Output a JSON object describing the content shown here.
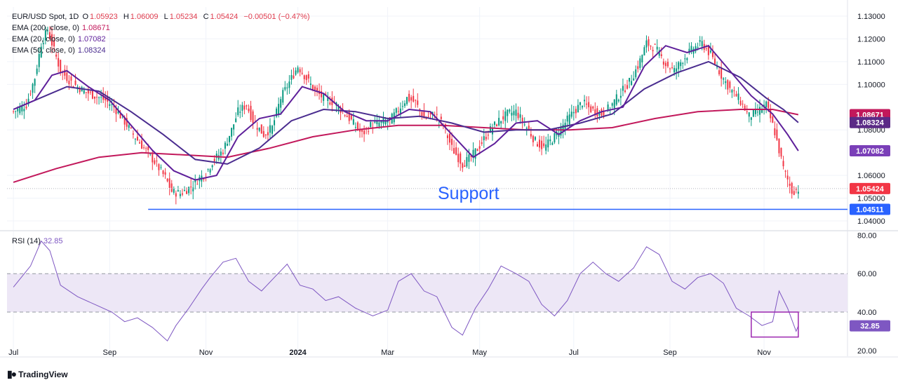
{
  "header": {
    "symbol": "EUR/USD Spot, 1D",
    "ohlc": [
      {
        "label": "O",
        "value": "1.05923"
      },
      {
        "label": "H",
        "value": "1.06009"
      },
      {
        "label": "L",
        "value": "1.05234"
      },
      {
        "label": "C",
        "value": "1.05424"
      }
    ],
    "change": "−0.00501 (−0.47%)"
  },
  "indicators": [
    {
      "label": "EMA (200, close, 0)",
      "value": "1.08671",
      "color": "#c2185b"
    },
    {
      "label": "EMA (20, close, 0)",
      "value": "1.07082",
      "color": "#5e1f9a"
    },
    {
      "label": "EMA (50, close, 0)",
      "value": "1.08324",
      "color": "#4a2c8f"
    }
  ],
  "rsi": {
    "label": "RSI (14)",
    "value": "32.85",
    "color": "#7e57c2"
  },
  "annotation": {
    "text": "Support",
    "level": 1.04511,
    "color": "#2962ff"
  },
  "price_tags": [
    {
      "value": "1.08671",
      "bg": "#c2185b"
    },
    {
      "value": "1.08324",
      "bg": "#5b2a86"
    },
    {
      "value": "1.07082",
      "bg": "#7a3fb8"
    },
    {
      "value": "1.05424",
      "bg": "#f23645"
    },
    {
      "value": "1.04511",
      "bg": "#2962ff"
    }
  ],
  "footer": {
    "brand": "TradingView",
    "logo": "tradingview-logo"
  },
  "colors": {
    "up": "#089981",
    "down": "#f23645",
    "grid": "#f0f3fa",
    "rsi_band": "#ede7f6"
  },
  "chart_data": [
    {
      "type": "candlestick",
      "title": "EUR/USD Spot, 1D",
      "ylim": [
        1.036,
        1.134
      ],
      "y_ticks": [
        1.04,
        1.05,
        1.06,
        1.08,
        1.1,
        1.11,
        1.12,
        1.13
      ],
      "y_tick_labels": [
        "1.04000",
        "1.05000",
        "1.06000",
        "1.08000",
        "1.10000",
        "1.11000",
        "1.12000",
        "1.13000"
      ],
      "x_tick_labels": [
        "Jul",
        "Sep",
        "Nov",
        "2024",
        "Mar",
        "May",
        "Jul",
        "Sep",
        "Nov"
      ],
      "x_tick_index": [
        0,
        45,
        90,
        133,
        175,
        218,
        262,
        307,
        351
      ],
      "x_range": [
        -3,
        390
      ],
      "close_path": [
        [
          0,
          1.088
        ],
        [
          6,
          1.091
        ],
        [
          10,
          1.103
        ],
        [
          13,
          1.118
        ],
        [
          16,
          1.124
        ],
        [
          19,
          1.115
        ],
        [
          22,
          1.106
        ],
        [
          27,
          1.101
        ],
        [
          33,
          1.097
        ],
        [
          38,
          1.095
        ],
        [
          43,
          1.093
        ],
        [
          47,
          1.09
        ],
        [
          51,
          1.085
        ],
        [
          56,
          1.078
        ],
        [
          61,
          1.072
        ],
        [
          66,
          1.066
        ],
        [
          71,
          1.059
        ],
        [
          74,
          1.053
        ],
        [
          78,
          1.052
        ],
        [
          83,
          1.055
        ],
        [
          86,
          1.058
        ],
        [
          90,
          1.061
        ],
        [
          93,
          1.066
        ],
        [
          98,
          1.071
        ],
        [
          102,
          1.08
        ],
        [
          105,
          1.088
        ],
        [
          109,
          1.091
        ],
        [
          112,
          1.084
        ],
        [
          117,
          1.078
        ],
        [
          121,
          1.081
        ],
        [
          125,
          1.094
        ],
        [
          129,
          1.101
        ],
        [
          133,
          1.108
        ],
        [
          136,
          1.104
        ],
        [
          141,
          1.097
        ],
        [
          145,
          1.094
        ],
        [
          150,
          1.092
        ],
        [
          154,
          1.088
        ],
        [
          158,
          1.084
        ],
        [
          163,
          1.078
        ],
        [
          167,
          1.082
        ],
        [
          171,
          1.083
        ],
        [
          176,
          1.084
        ],
        [
          180,
          1.089
        ],
        [
          184,
          1.094
        ],
        [
          188,
          1.092
        ],
        [
          192,
          1.085
        ],
        [
          197,
          1.087
        ],
        [
          201,
          1.082
        ],
        [
          205,
          1.072
        ],
        [
          210,
          1.065
        ],
        [
          214,
          1.068
        ],
        [
          218,
          1.073
        ],
        [
          222,
          1.079
        ],
        [
          227,
          1.084
        ],
        [
          231,
          1.087
        ],
        [
          235,
          1.088
        ],
        [
          240,
          1.081
        ],
        [
          244,
          1.075
        ],
        [
          248,
          1.072
        ],
        [
          253,
          1.077
        ],
        [
          257,
          1.082
        ],
        [
          262,
          1.088
        ],
        [
          266,
          1.092
        ],
        [
          270,
          1.089
        ],
        [
          275,
          1.087
        ],
        [
          279,
          1.09
        ],
        [
          283,
          1.095
        ],
        [
          288,
          1.101
        ],
        [
          292,
          1.108
        ],
        [
          296,
          1.118
        ],
        [
          300,
          1.116
        ],
        [
          305,
          1.109
        ],
        [
          309,
          1.106
        ],
        [
          313,
          1.111
        ],
        [
          318,
          1.116
        ],
        [
          322,
          1.118
        ],
        [
          326,
          1.113
        ],
        [
          331,
          1.104
        ],
        [
          335,
          1.098
        ],
        [
          339,
          1.094
        ],
        [
          344,
          1.086
        ],
        [
          348,
          1.088
        ],
        [
          352,
          1.091
        ],
        [
          356,
          1.079
        ],
        [
          360,
          1.063
        ],
        [
          364,
          1.053
        ],
        [
          367,
          1.054
        ]
      ],
      "ema200_path": [
        [
          0,
          1.057
        ],
        [
          20,
          1.063
        ],
        [
          40,
          1.068
        ],
        [
          60,
          1.07
        ],
        [
          80,
          1.069
        ],
        [
          100,
          1.068
        ],
        [
          120,
          1.072
        ],
        [
          140,
          1.077
        ],
        [
          160,
          1.08
        ],
        [
          180,
          1.082
        ],
        [
          200,
          1.082
        ],
        [
          220,
          1.081
        ],
        [
          240,
          1.08
        ],
        [
          260,
          1.08
        ],
        [
          280,
          1.081
        ],
        [
          300,
          1.085
        ],
        [
          320,
          1.088
        ],
        [
          340,
          1.089
        ],
        [
          355,
          1.089
        ],
        [
          367,
          1.0867
        ]
      ],
      "ema20_path": [
        [
          0,
          1.089
        ],
        [
          10,
          1.093
        ],
        [
          18,
          1.104
        ],
        [
          25,
          1.106
        ],
        [
          35,
          1.099
        ],
        [
          45,
          1.093
        ],
        [
          55,
          1.082
        ],
        [
          65,
          1.071
        ],
        [
          75,
          1.062
        ],
        [
          85,
          1.058
        ],
        [
          95,
          1.06
        ],
        [
          105,
          1.077
        ],
        [
          115,
          1.085
        ],
        [
          125,
          1.087
        ],
        [
          135,
          1.099
        ],
        [
          145,
          1.096
        ],
        [
          155,
          1.088
        ],
        [
          165,
          1.084
        ],
        [
          175,
          1.084
        ],
        [
          185,
          1.089
        ],
        [
          195,
          1.088
        ],
        [
          205,
          1.078
        ],
        [
          215,
          1.068
        ],
        [
          225,
          1.074
        ],
        [
          235,
          1.083
        ],
        [
          245,
          1.084
        ],
        [
          255,
          1.078
        ],
        [
          265,
          1.084
        ],
        [
          275,
          1.088
        ],
        [
          285,
          1.09
        ],
        [
          295,
          1.108
        ],
        [
          305,
          1.117
        ],
        [
          315,
          1.114
        ],
        [
          325,
          1.117
        ],
        [
          335,
          1.106
        ],
        [
          345,
          1.095
        ],
        [
          355,
          1.087
        ],
        [
          362,
          1.078
        ],
        [
          367,
          1.0708
        ]
      ],
      "ema50_path": [
        [
          0,
          1.089
        ],
        [
          15,
          1.095
        ],
        [
          25,
          1.099
        ],
        [
          40,
          1.097
        ],
        [
          55,
          1.088
        ],
        [
          70,
          1.078
        ],
        [
          85,
          1.067
        ],
        [
          100,
          1.065
        ],
        [
          115,
          1.072
        ],
        [
          130,
          1.084
        ],
        [
          145,
          1.089
        ],
        [
          160,
          1.088
        ],
        [
          175,
          1.085
        ],
        [
          190,
          1.086
        ],
        [
          205,
          1.083
        ],
        [
          220,
          1.079
        ],
        [
          235,
          1.08
        ],
        [
          250,
          1.08
        ],
        [
          265,
          1.083
        ],
        [
          280,
          1.087
        ],
        [
          295,
          1.098
        ],
        [
          310,
          1.105
        ],
        [
          325,
          1.11
        ],
        [
          340,
          1.103
        ],
        [
          352,
          1.094
        ],
        [
          360,
          1.089
        ],
        [
          367,
          1.0832
        ]
      ],
      "support_level": 1.04511,
      "last_price": 1.05424
    },
    {
      "type": "line",
      "title": "RSI (14)",
      "ylim": [
        17,
        82
      ],
      "y_ticks": [
        20,
        40,
        60,
        80
      ],
      "y_tick_labels": [
        "20.00",
        "40.00",
        "60.00",
        "80.00"
      ],
      "band": [
        40,
        60
      ],
      "rsi_path": [
        [
          0,
          53
        ],
        [
          8,
          64
        ],
        [
          13,
          77
        ],
        [
          17,
          72
        ],
        [
          22,
          54
        ],
        [
          30,
          48
        ],
        [
          38,
          44
        ],
        [
          46,
          40
        ],
        [
          52,
          35
        ],
        [
          58,
          37
        ],
        [
          65,
          32
        ],
        [
          72,
          25
        ],
        [
          76,
          33
        ],
        [
          82,
          42
        ],
        [
          88,
          52
        ],
        [
          92,
          58
        ],
        [
          98,
          66
        ],
        [
          104,
          68
        ],
        [
          110,
          56
        ],
        [
          116,
          51
        ],
        [
          122,
          58
        ],
        [
          128,
          65
        ],
        [
          134,
          54
        ],
        [
          140,
          52
        ],
        [
          146,
          46
        ],
        [
          152,
          48
        ],
        [
          160,
          42
        ],
        [
          168,
          38
        ],
        [
          175,
          41
        ],
        [
          180,
          56
        ],
        [
          186,
          60
        ],
        [
          192,
          51
        ],
        [
          198,
          48
        ],
        [
          205,
          32
        ],
        [
          210,
          28
        ],
        [
          216,
          42
        ],
        [
          222,
          52
        ],
        [
          228,
          64
        ],
        [
          235,
          60
        ],
        [
          241,
          56
        ],
        [
          247,
          44
        ],
        [
          253,
          38
        ],
        [
          259,
          46
        ],
        [
          265,
          60
        ],
        [
          271,
          66
        ],
        [
          277,
          60
        ],
        [
          283,
          56
        ],
        [
          290,
          63
        ],
        [
          296,
          74
        ],
        [
          302,
          70
        ],
        [
          308,
          56
        ],
        [
          314,
          52
        ],
        [
          320,
          58
        ],
        [
          326,
          60
        ],
        [
          332,
          55
        ],
        [
          338,
          42
        ],
        [
          344,
          38
        ],
        [
          350,
          33
        ],
        [
          355,
          35
        ],
        [
          358,
          51
        ],
        [
          362,
          42
        ],
        [
          366,
          30
        ],
        [
          367,
          32.85
        ]
      ],
      "highlight_box": {
        "x": [
          345,
          367
        ],
        "y": [
          27,
          40
        ]
      },
      "last_value": 32.85
    }
  ]
}
